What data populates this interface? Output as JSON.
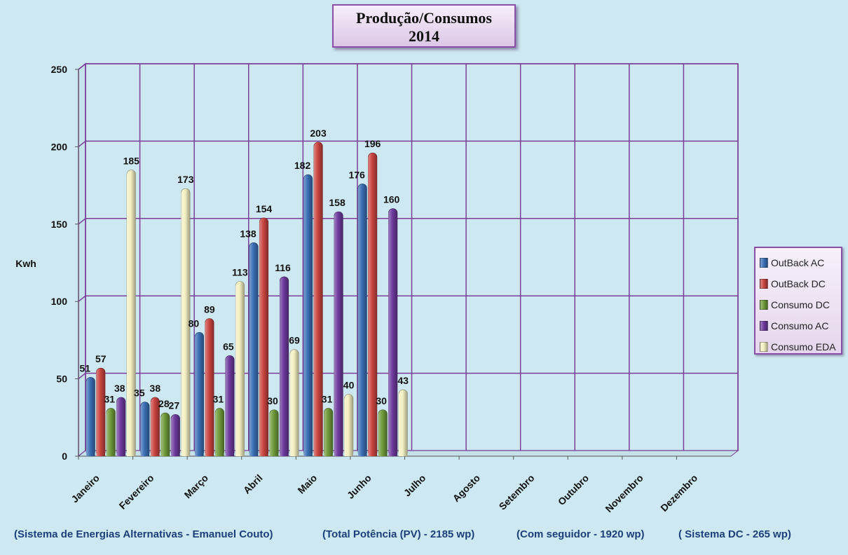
{
  "title": {
    "line1": "Produção/Consumos",
    "line2": "2014"
  },
  "footer": {
    "system": "(Sistema de Energias Alternativas  - Emanuel Couto)",
    "total": "(Total Potência (PV) - 2185 wp)",
    "tracker": "(Com seguidor - 1920 wp)",
    "dc": "( Sistema DC - 265 wp)"
  },
  "chart_data": {
    "type": "bar",
    "title": "Produção/Consumos 2014",
    "ylabel": "Kwh",
    "xlabel": "",
    "ylim": [
      0,
      250
    ],
    "yticks": [
      "0",
      "50",
      "100",
      "150",
      "200",
      "250"
    ],
    "grid": true,
    "legend_position": "right",
    "categories": [
      "Janeiro",
      "Fevereiro",
      "Março",
      "Abril",
      "Maio",
      "Junho",
      "Julho",
      "Agosto",
      "Setembro",
      "Outubro",
      "Novembro",
      "Dezembro"
    ],
    "series": [
      {
        "name": "OutBack AC",
        "color": "#3a6fb5",
        "values": [
          51,
          35,
          80,
          138,
          182,
          176,
          null,
          null,
          null,
          null,
          null,
          null
        ]
      },
      {
        "name": "OutBack DC",
        "color": "#c9443f",
        "values": [
          57,
          38,
          89,
          154,
          203,
          196,
          null,
          null,
          null,
          null,
          null,
          null
        ]
      },
      {
        "name": "Consumo DC",
        "color": "#6f9a3a",
        "values": [
          31,
          28,
          31,
          30,
          31,
          30,
          null,
          null,
          null,
          null,
          null,
          null
        ]
      },
      {
        "name": "Consumo AC",
        "color": "#6d3a9c",
        "values": [
          38,
          27,
          65,
          116,
          158,
          160,
          null,
          null,
          null,
          null,
          null,
          null
        ]
      },
      {
        "name": "Consumo EDA",
        "color": "#f3f0c2",
        "values": [
          185,
          173,
          113,
          69,
          40,
          43,
          null,
          null,
          null,
          null,
          null,
          null
        ]
      }
    ]
  }
}
